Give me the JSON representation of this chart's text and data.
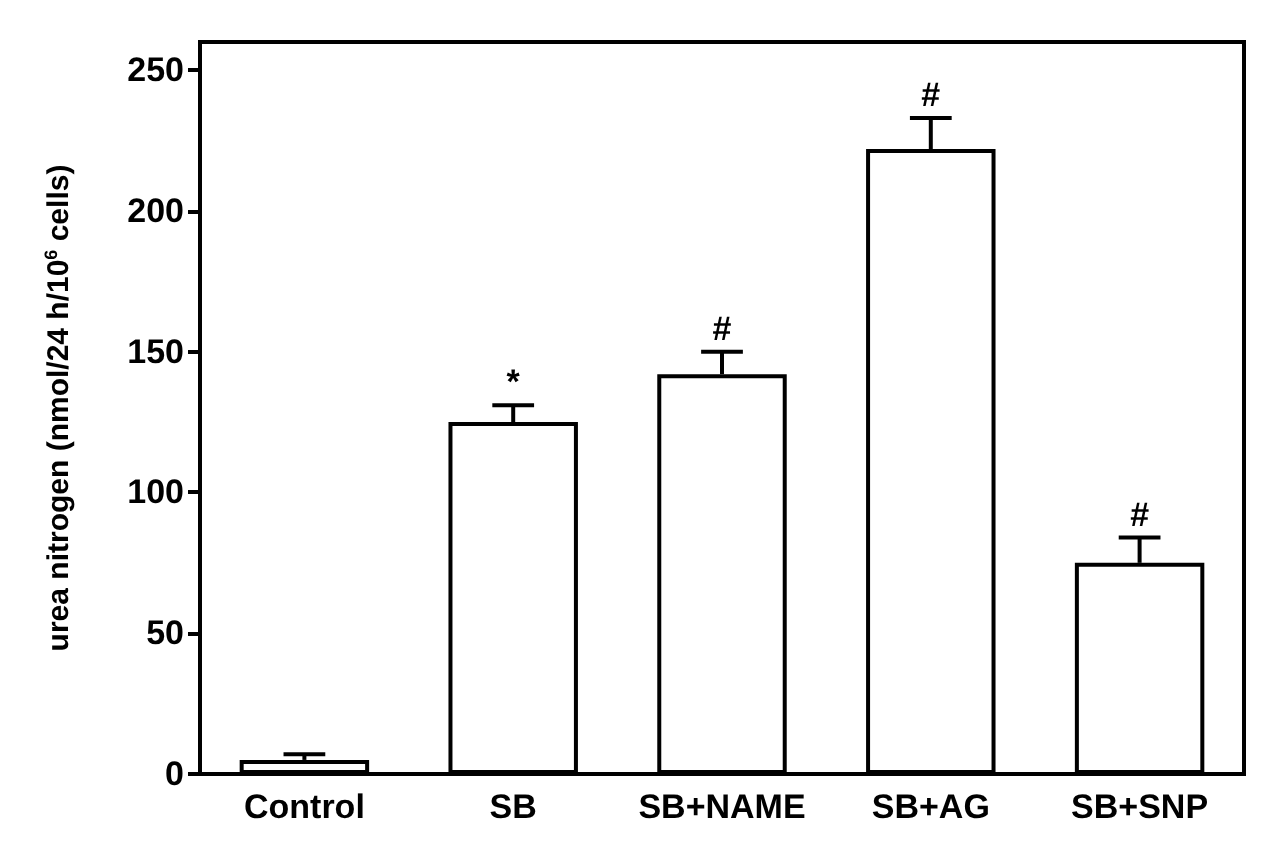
{
  "chart_data": {
    "type": "bar",
    "ylabel": "urea nitrogen (nmol/24 h/10$^{6}$ cells)",
    "categories": [
      "Control",
      "SB",
      "SB+NAME",
      "SB+AG",
      "SB+SNP"
    ],
    "values": [
      5,
      125,
      142,
      222,
      75
    ],
    "errors": [
      2,
      6,
      8,
      11,
      9
    ],
    "color": "#ffffff",
    "ylim": [
      0,
      260
    ],
    "yticks": [
      0,
      50,
      100,
      150,
      200,
      250
    ],
    "grid": false,
    "annotations": [
      {
        "text": "*",
        "x": "SB",
        "y": 131
      },
      {
        "text": "#",
        "x": "SB+NAME",
        "y": 150
      },
      {
        "text": "#",
        "x": "SB+AG",
        "y": 233
      },
      {
        "text": "#",
        "x": "SB+SNP",
        "y": 84
      }
    ]
  }
}
